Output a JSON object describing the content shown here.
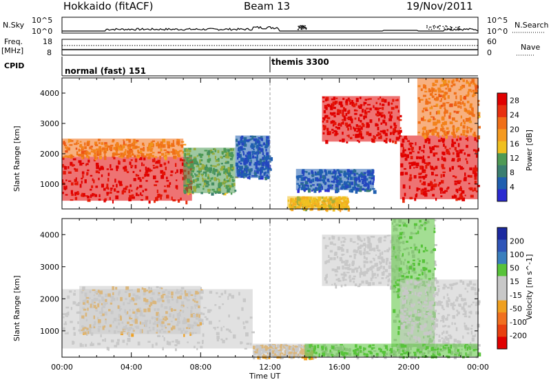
{
  "header": {
    "station": "Hokkaido (fitACF)",
    "beam": "Beam 13",
    "date": "19/Nov/2011"
  },
  "strips": {
    "nsky": {
      "label": "N.Sky",
      "ticks": [
        "10^5",
        "10^0"
      ],
      "right_label": "N.Search"
    },
    "freq": {
      "label_top": "Freq.",
      "label_bottom": "[MHz]",
      "ticks": [
        "18",
        "8"
      ],
      "right_ticks": [
        "60",
        "0"
      ],
      "right_label": "Nave"
    },
    "cpid": {
      "label": "CPID",
      "modes": [
        {
          "name": "normal (fast) 151",
          "start": "00:00"
        },
        {
          "name": "themis 3300",
          "start": "12:00"
        }
      ]
    }
  },
  "colors": {
    "power": [
      "#2a2ad0",
      "#1f5fb0",
      "#3a7e70",
      "#4f9a55",
      "#f0c020",
      "#f59a20",
      "#f06f18",
      "#e83010",
      "#e00000"
    ],
    "velocity": [
      "#1c2aa0",
      "#2f55b8",
      "#3a7fbe",
      "#58c33a",
      "#c8c8c8",
      "#c8c8c8",
      "#f0a020",
      "#f07020",
      "#e84010",
      "#e00000"
    ]
  },
  "chart_data": [
    {
      "type": "heatmap",
      "name": "Power",
      "ylabel": "Slant Range [km]",
      "xlim": [
        "00:00",
        "24:00"
      ],
      "ylim": [
        180,
        4500
      ],
      "yticks": [
        1000,
        2000,
        3000,
        4000
      ],
      "colorbar": {
        "label": "Power [dB]",
        "ticks": [
          4,
          8,
          12,
          16,
          20,
          24,
          28
        ],
        "range": [
          0,
          30
        ]
      },
      "regions": [
        {
          "t_start": 0.0,
          "t_end": 7.5,
          "range_start": 450,
          "range_end": 1900,
          "level": 28
        },
        {
          "t_start": 0.0,
          "t_end": 7.0,
          "range_start": 1900,
          "range_end": 2500,
          "level": 20
        },
        {
          "t_start": 7.0,
          "t_end": 10.0,
          "range_start": 700,
          "range_end": 2200,
          "level": 12
        },
        {
          "t_start": 10.0,
          "t_end": 12.0,
          "range_start": 1200,
          "range_end": 2600,
          "level": 4
        },
        {
          "t_start": 13.5,
          "t_end": 18.0,
          "range_start": 800,
          "range_end": 1500,
          "level": 4
        },
        {
          "t_start": 13.0,
          "t_end": 16.5,
          "range_start": 200,
          "range_end": 600,
          "level": 16
        },
        {
          "t_start": 15.0,
          "t_end": 19.5,
          "range_start": 2400,
          "range_end": 3900,
          "level": 28
        },
        {
          "t_start": 19.5,
          "t_end": 24.0,
          "range_start": 500,
          "range_end": 2600,
          "level": 28
        },
        {
          "t_start": 20.5,
          "t_end": 24.0,
          "range_start": 2600,
          "range_end": 4500,
          "level": 20
        }
      ]
    },
    {
      "type": "heatmap",
      "name": "Velocity",
      "ylabel": "Slant Range [km]",
      "xlabel": "Time UT",
      "xticks": [
        "00:00",
        "04:00",
        "08:00",
        "12:00",
        "16:00",
        "20:00",
        "00:00"
      ],
      "ylim": [
        180,
        4500
      ],
      "yticks": [
        1000,
        2000,
        3000,
        4000
      ],
      "colorbar": {
        "label": "Velocity [m s^-1]",
        "ticks": [
          200,
          100,
          50,
          15,
          -15,
          -50,
          -100,
          -200
        ],
        "range": [
          -250,
          250
        ]
      },
      "regions": [
        {
          "t_start": 0.0,
          "t_end": 11.0,
          "range_start": 450,
          "range_end": 2300,
          "value": 0
        },
        {
          "t_start": 1.0,
          "t_end": 8.0,
          "range_start": 900,
          "range_end": 2400,
          "value": -50
        },
        {
          "t_start": 11.0,
          "t_end": 14.5,
          "range_start": 200,
          "range_end": 600,
          "value": -50
        },
        {
          "t_start": 15.0,
          "t_end": 19.5,
          "range_start": 2400,
          "range_end": 4000,
          "value": 0
        },
        {
          "t_start": 19.0,
          "t_end": 21.5,
          "range_start": 500,
          "range_end": 4500,
          "value": 50
        },
        {
          "t_start": 19.5,
          "t_end": 24.0,
          "range_start": 500,
          "range_end": 2600,
          "value": 0
        },
        {
          "t_start": 14.0,
          "t_end": 24.0,
          "range_start": 200,
          "range_end": 600,
          "value": 50
        }
      ]
    }
  ]
}
